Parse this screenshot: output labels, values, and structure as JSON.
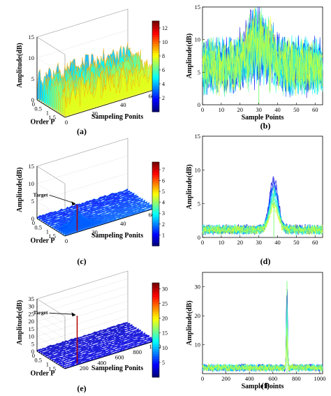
{
  "colors": {
    "low": "#00008f",
    "mid": "#00e0ff",
    "high": "#ffe000",
    "top": "#800000"
  },
  "chart_data": [
    {
      "id": "a",
      "type": "surface3d",
      "caption": "(a)",
      "zlabel": "Amplitude(dB)",
      "ylabel": "Order P",
      "xlabel": "Sampeling Ponits",
      "zticks": [
        0,
        5,
        10,
        15
      ],
      "yticks": [
        1.5,
        1,
        0.5,
        0
      ],
      "xticks": [
        0,
        20,
        40,
        60
      ],
      "xrange": [
        0,
        64
      ],
      "zrange": [
        0,
        15
      ],
      "colorbar_ticks": [
        2,
        4,
        6,
        8,
        10,
        12
      ],
      "colorbar_range": [
        0,
        13
      ],
      "annotation": "",
      "noise_level": 3.5,
      "noise_spread": 6,
      "peak": 0
    },
    {
      "id": "b",
      "type": "line",
      "caption": "(b)",
      "ylabel": "Amplitude(dB)",
      "xlabel": "Sample Points",
      "yticks": [
        0,
        5,
        10,
        15
      ],
      "xticks": [
        0,
        10,
        20,
        30,
        40,
        50,
        60
      ],
      "xrange": [
        0,
        64
      ],
      "yrange": [
        0,
        15
      ],
      "noise_level": 3,
      "noise_spread": 7,
      "peak_x": 30,
      "peak": 14
    },
    {
      "id": "c",
      "type": "surface3d",
      "caption": "(c)",
      "zlabel": "Amplitude(dB)",
      "ylabel": "Order P",
      "xlabel": "Sampeling Ponits",
      "zticks": [
        0,
        5,
        10,
        15
      ],
      "yticks": [
        1.5,
        1,
        0.5,
        0
      ],
      "xticks": [
        0,
        20,
        40,
        60
      ],
      "xrange": [
        0,
        64
      ],
      "zrange": [
        0,
        15
      ],
      "colorbar_ticks": [
        1,
        2,
        3,
        4,
        5,
        6,
        7
      ],
      "colorbar_range": [
        0,
        7.7
      ],
      "annotation": "Target",
      "noise_level": 0.8,
      "noise_spread": 1.2,
      "peak": 7.5
    },
    {
      "id": "d",
      "type": "line",
      "caption": "(d)",
      "ylabel": "Amplitude(dB)",
      "xlabel": "",
      "yticks": [
        0,
        5,
        10,
        15
      ],
      "xticks": [
        0,
        10,
        20,
        30,
        40,
        50,
        60
      ],
      "xrange": [
        0,
        64
      ],
      "yrange": [
        0,
        15
      ],
      "noise_level": 1,
      "noise_spread": 1.2,
      "peak_x": 38,
      "peak": 7.5
    },
    {
      "id": "e",
      "type": "surface3d",
      "caption": "(e)",
      "zlabel": "Amplitude(dB)",
      "ylabel": "Order P",
      "xlabel": "Sampeling Ponits",
      "zticks": [
        0,
        5,
        10,
        15,
        20,
        25,
        30,
        35
      ],
      "yticks": [
        1.5,
        1,
        0.5,
        0
      ],
      "xticks": [
        200,
        400,
        600,
        800,
        1000
      ],
      "xrange": [
        0,
        1024
      ],
      "zrange": [
        0,
        35
      ],
      "colorbar_ticks": [
        5,
        10,
        15,
        20,
        25,
        30
      ],
      "colorbar_range": [
        0,
        32
      ],
      "annotation": "Target",
      "noise_level": 1.5,
      "noise_spread": 2,
      "peak": 32
    },
    {
      "id": "f",
      "type": "line",
      "caption": "(f)",
      "ylabel": "Amplitude(dB)",
      "xlabel": "Sample Points",
      "yticks": [
        10,
        20,
        30
      ],
      "xticks": [
        0,
        200,
        400,
        600,
        800,
        1000
      ],
      "xrange": [
        0,
        1024
      ],
      "yrange": [
        0,
        35
      ],
      "noise_level": 2,
      "noise_spread": 1.5,
      "peak_x": 720,
      "peak": 32
    }
  ]
}
